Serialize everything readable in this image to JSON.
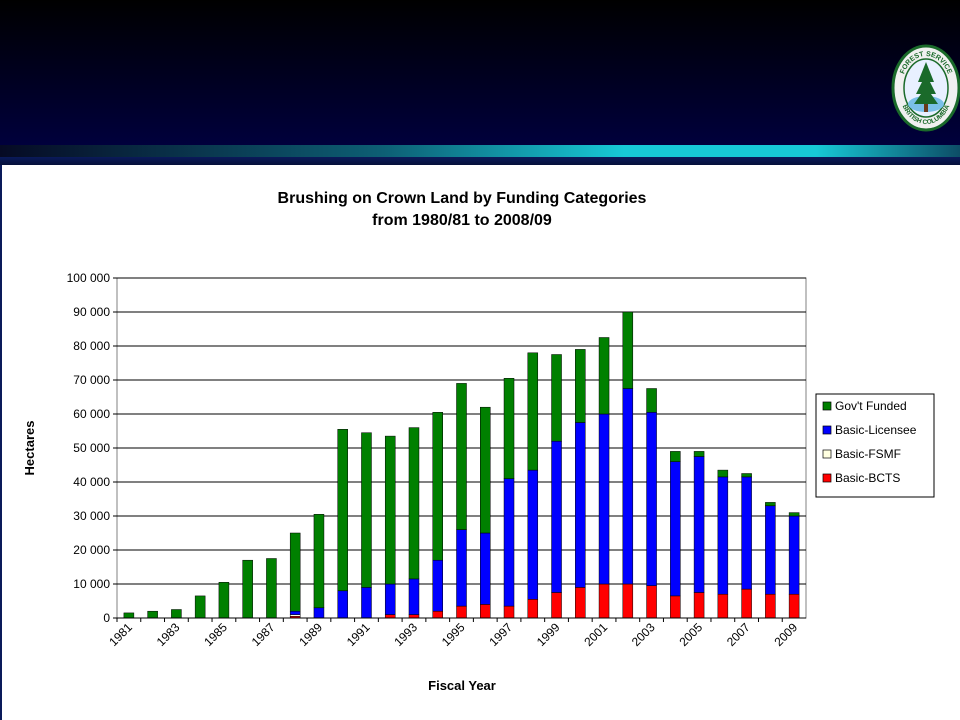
{
  "logo": {
    "text_top": "FOREST SERVICE",
    "text_bottom": "BRITISH COLUMBIA"
  },
  "colors": {
    "banner": "#00003c",
    "accent": "#17c9d6",
    "govt": "#008000",
    "licensee": "#0000ff",
    "fsmf": "#ffffe0",
    "bcts": "#ff0000"
  },
  "chart_data": {
    "type": "bar",
    "stacked": true,
    "title": [
      "Brushing on Crown Land by Funding Categories",
      "from 1980/81 to 2008/09"
    ],
    "xlabel": "Fiscal Year",
    "ylabel": "Hectares",
    "ylim": [
      0,
      100000
    ],
    "yticks": [
      0,
      10000,
      20000,
      30000,
      40000,
      50000,
      60000,
      70000,
      80000,
      90000,
      100000
    ],
    "ytick_labels": [
      "0",
      "10 000",
      "20 000",
      "30 000",
      "40 000",
      "50 000",
      "60 000",
      "70 000",
      "80 000",
      "90 000",
      "100 000"
    ],
    "grid": true,
    "legend_position": "right",
    "categories": [
      "1981",
      "1982",
      "1983",
      "1984",
      "1985",
      "1986",
      "1987",
      "1988",
      "1989",
      "1990",
      "1991",
      "1992",
      "1993",
      "1994",
      "1995",
      "1996",
      "1997",
      "1998",
      "1999",
      "2000",
      "2001",
      "2002",
      "2003",
      "2004",
      "2005",
      "2006",
      "2007",
      "2008",
      "2009"
    ],
    "xtick_labels": [
      "1981",
      "",
      "1983",
      "",
      "1985",
      "",
      "1987",
      "",
      "1989",
      "",
      "1991",
      "",
      "1993",
      "",
      "1995",
      "",
      "1997",
      "",
      "1999",
      "",
      "2001",
      "",
      "2003",
      "",
      "2005",
      "",
      "2007",
      "",
      "2009"
    ],
    "series": [
      {
        "name": "Basic-BCTS",
        "color": "#ff0000",
        "values": [
          0,
          0,
          0,
          0,
          0,
          0,
          0,
          500,
          0,
          0,
          0,
          1000,
          1000,
          2000,
          3500,
          4000,
          3500,
          5500,
          7500,
          9000,
          10000,
          10000,
          9500,
          6500,
          7500,
          7000,
          8500,
          7000,
          7000
        ]
      },
      {
        "name": "Basic-FSMF",
        "color": "#ffffe0",
        "values": [
          0,
          0,
          0,
          0,
          0,
          0,
          0,
          500,
          0,
          0,
          0,
          0,
          0,
          0,
          0,
          0,
          0,
          0,
          0,
          0,
          0,
          0,
          0,
          0,
          0,
          0,
          0,
          0,
          0
        ]
      },
      {
        "name": "Basic-Licensee",
        "color": "#0000ff",
        "values": [
          0,
          0,
          0,
          0,
          0,
          0,
          0,
          1000,
          3000,
          8000,
          9000,
          9000,
          10500,
          15000,
          22500,
          21000,
          37500,
          38000,
          44500,
          48500,
          50000,
          57500,
          51000,
          39500,
          40000,
          34500,
          33000,
          26000,
          23000
        ]
      },
      {
        "name": "Gov't Funded",
        "color": "#008000",
        "values": [
          1500,
          2000,
          2500,
          6500,
          10500,
          17000,
          17500,
          23000,
          27500,
          47500,
          45500,
          43500,
          44500,
          43500,
          43000,
          37000,
          29500,
          34500,
          25500,
          21500,
          22500,
          22500,
          7000,
          3000,
          1500,
          2000,
          1000,
          1000,
          1000
        ]
      }
    ],
    "legend_entries": [
      "Gov't Funded",
      "Basic-Licensee",
      "Basic-FSMF",
      "Basic-BCTS"
    ]
  }
}
